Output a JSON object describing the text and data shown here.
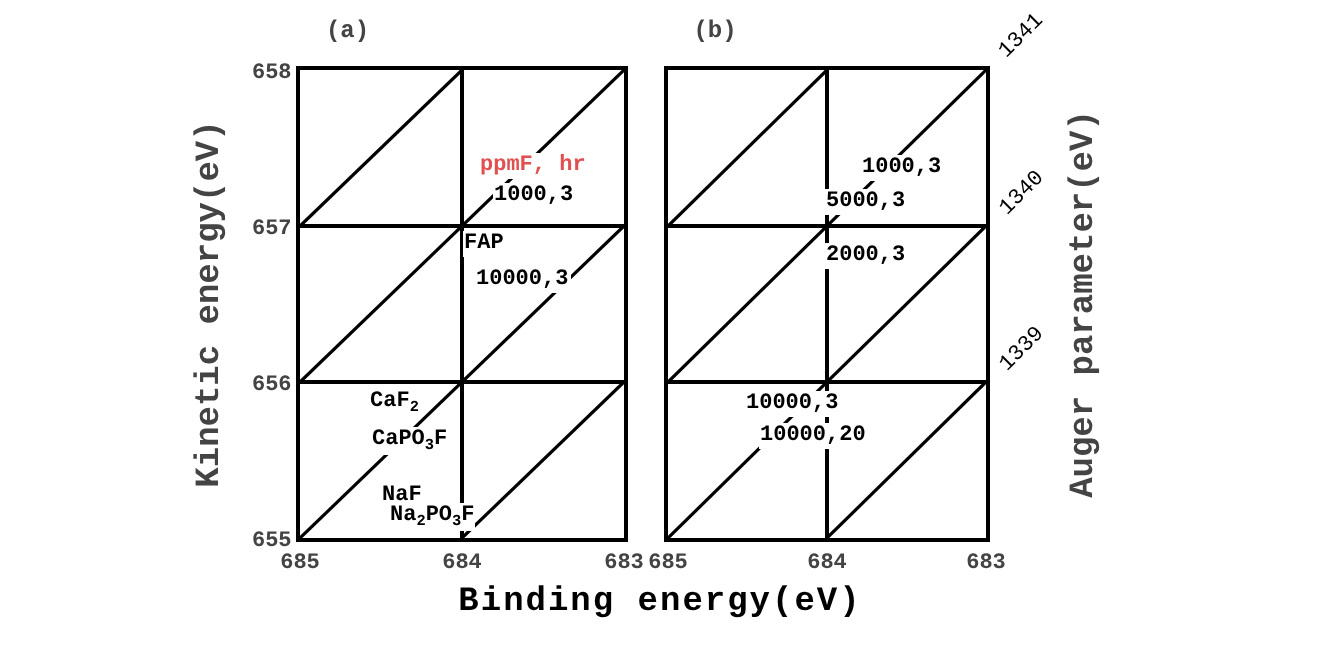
{
  "chart_data": [
    {
      "type": "line",
      "title": "(a)",
      "xlabel": "Binding energy(eV)",
      "ylabel": "Kinetic energy(eV)",
      "xlim": [
        685,
        683
      ],
      "xticks": [
        685,
        684,
        683
      ],
      "ylim": [
        655,
        658
      ],
      "yticks": [
        655,
        656,
        657,
        658
      ],
      "grid": true,
      "series": [
        {
          "color": "#000000",
          "x": [
            685,
            684
          ],
          "values": [
            657,
            658
          ]
        },
        {
          "color": "#000000",
          "x": [
            685,
            683
          ],
          "values": [
            656,
            658
          ]
        },
        {
          "color": "#000000",
          "x": [
            685,
            683
          ],
          "values": [
            655,
            657
          ]
        },
        {
          "color": "#000000",
          "x": [
            684,
            683
          ],
          "values": [
            655,
            656
          ]
        }
      ],
      "annotations": [
        "ppmF, hr",
        "1000,3",
        "FAP",
        "10000,3",
        "CaF$_{2}$",
        "CaPO$_{3}$F",
        "NaF",
        "Na$_{2}$PO$_{3}$F"
      ]
    },
    {
      "type": "line",
      "title": "(b)",
      "y2label": "Auger parameter(eV)",
      "xlim": [
        685,
        683
      ],
      "xticks": [
        685,
        684,
        683
      ],
      "ylim": [
        655,
        658
      ],
      "yticks": [
        655,
        656,
        657,
        658
      ],
      "grid": true,
      "tick_labels": "x",
      "series": [
        {
          "color": "#000000",
          "x": [
            685,
            684
          ],
          "values": [
            657,
            658
          ]
        },
        {
          "name": "1341",
          "color": "#000000",
          "x": [
            685,
            683
          ],
          "values": [
            656,
            658
          ]
        },
        {
          "name": "1340",
          "color": "#000000",
          "x": [
            685,
            683
          ],
          "values": [
            655,
            657
          ]
        },
        {
          "name": "1339",
          "color": "#000000",
          "x": [
            684,
            683
          ],
          "values": [
            655,
            656
          ]
        }
      ],
      "annotations": [
        "1000,3",
        "5000,3",
        "2000,3",
        "10000,3",
        "10000,20"
      ]
    }
  ]
}
